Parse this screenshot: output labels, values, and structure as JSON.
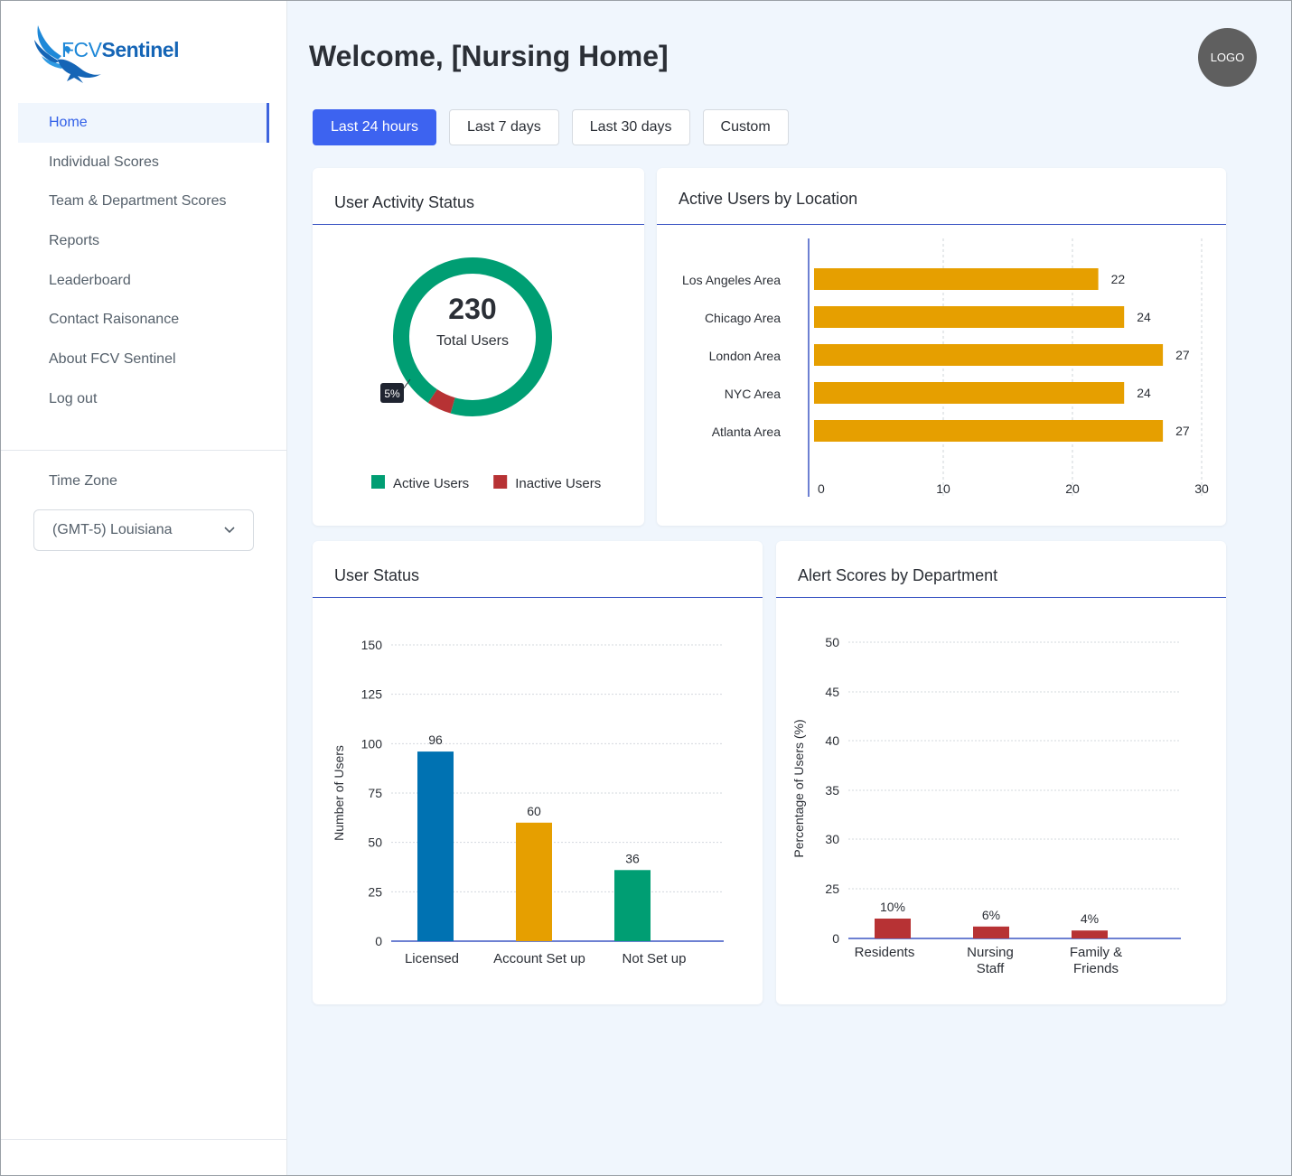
{
  "brand": {
    "prefix": "FCV",
    "name": "Sentinel"
  },
  "sidebar": {
    "items": [
      {
        "label": "Home",
        "active": true
      },
      {
        "label": "Individual Scores"
      },
      {
        "label": "Team & Department Scores"
      },
      {
        "label": "Reports"
      },
      {
        "label": "Leaderboard"
      },
      {
        "label": "Contact Raisonance"
      },
      {
        "label": "About FCV Sentinel"
      },
      {
        "label": "Log out"
      }
    ],
    "timezone_label": "Time Zone",
    "timezone_value": "(GMT-5) Louisiana"
  },
  "header": {
    "title": "Welcome, [Nursing Home]",
    "logo": "LOGO"
  },
  "filters": [
    {
      "label": "Last 24 hours",
      "active": true
    },
    {
      "label": "Last 7 days"
    },
    {
      "label": "Last 30 days"
    },
    {
      "label": "Custom"
    }
  ],
  "cards": {
    "activity": {
      "title": "User Activity Status"
    },
    "location": {
      "title": "Active Users by Location"
    },
    "status": {
      "title": "User Status"
    },
    "alerts": {
      "title": "Alert Scores by Department"
    }
  },
  "colors": {
    "accent": "#3d63f0",
    "active": "#009e73",
    "inactive": "#b73234",
    "amber": "#e69f00",
    "blue": "#0072b2"
  },
  "chart_data": [
    {
      "type": "pie",
      "center_value": "230",
      "center_label": "Total Users",
      "slices": [
        {
          "name": "Active Users",
          "value": 95,
          "color": "#009e73"
        },
        {
          "name": "Inactive Users",
          "value": 5,
          "color": "#b73234"
        }
      ],
      "callout": "5%",
      "legend": "bottom"
    },
    {
      "type": "bar",
      "orientation": "horizontal",
      "categories": [
        "Los Angeles Area",
        "Chicago Area",
        "London Area",
        "NYC Area",
        "Atlanta Area"
      ],
      "values": [
        22,
        24,
        27,
        24,
        27
      ],
      "xlim": [
        0,
        30
      ],
      "xticks": [
        "0",
        "10",
        "20",
        "30"
      ],
      "color": "#e69f00"
    },
    {
      "type": "bar",
      "categories": [
        "Licensed",
        "Account Set up",
        "Not Set up"
      ],
      "values": [
        96,
        60,
        36
      ],
      "colors": [
        "#0072b2",
        "#e69f00",
        "#009e73"
      ],
      "ylabel": "Number of Users",
      "ylim": [
        0,
        150
      ],
      "yticks": [
        "0",
        "25",
        "50",
        "75",
        "100",
        "125",
        "150"
      ]
    },
    {
      "type": "bar",
      "categories": [
        [
          "Residents"
        ],
        [
          "Nursing",
          "Staff"
        ],
        [
          "Family &",
          "Friends"
        ]
      ],
      "values": [
        10,
        6,
        4
      ],
      "data_labels": [
        "10%",
        "6%",
        "4%"
      ],
      "color": "#b73234",
      "ylabel": "Percentage of Users (%)",
      "ylim": [
        0,
        50
      ],
      "yticks": [
        "0",
        "25",
        "30",
        "35",
        "40",
        "45",
        "50"
      ]
    }
  ]
}
